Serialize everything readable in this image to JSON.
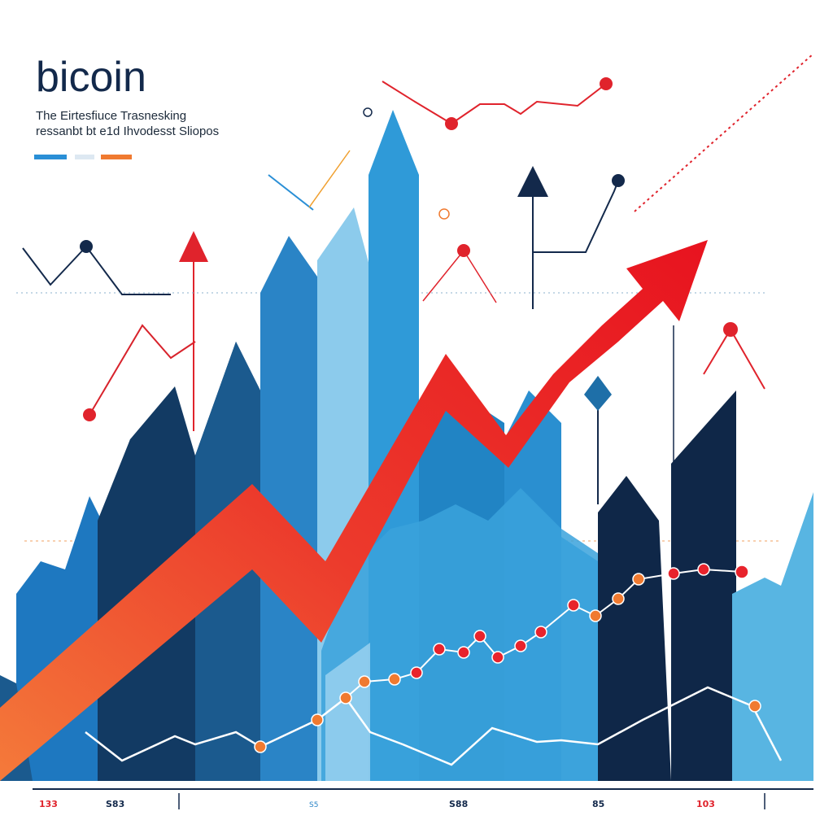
{
  "header": {
    "title": "bicoin",
    "subtitle_lines": [
      "The Eirtesfiuce Trasnesking",
      "ressanbt bt e1d Ihvodesst Sliopos"
    ]
  },
  "axis_labels": [
    "133",
    "S83",
    "S5",
    "S88",
    "85",
    "103"
  ]
}
